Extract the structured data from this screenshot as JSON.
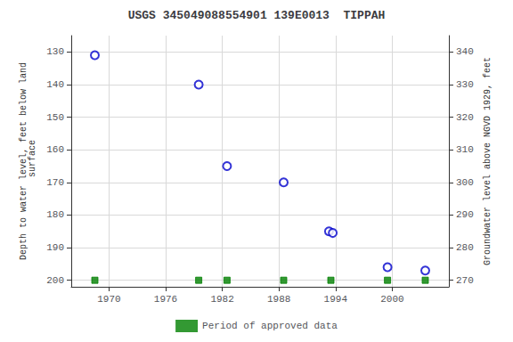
{
  "chart_data": {
    "type": "scatter",
    "title": "USGS 345049088554901 139E0013  TIPPAH",
    "y_label": "Depth to water level, feet below land\n surface",
    "y2_label": "Groundwater level above NGVD 1929, feet",
    "series": [
      {
        "x": [
          1968.5,
          1979.5,
          1982.5,
          1988.5,
          1993.3,
          1993.7,
          1999.5,
          2003.5
        ],
        "values": [
          131,
          140,
          165,
          170,
          185,
          185.5,
          196,
          197
        ],
        "color": "#0000cc",
        "marker": "open_circle"
      },
      {
        "name": "Period of approved data",
        "x": [
          1968.5,
          1979.5,
          1982.5,
          1988.5,
          1993.5,
          1999.5,
          2003.5
        ],
        "values": [
          200,
          200,
          200,
          200,
          200,
          200,
          200
        ],
        "color": "#008000",
        "marker": "square"
      }
    ],
    "xlim": [
      1966,
      2006
    ],
    "xticks": [
      1970,
      1976,
      1982,
      1988,
      1994,
      2000
    ],
    "ylim": [
      202,
      125
    ],
    "yticks": [
      130,
      140,
      150,
      160,
      170,
      180,
      190,
      200
    ],
    "y2lim": [
      268,
      345
    ],
    "y2ticks": [
      340,
      330,
      320,
      310,
      300,
      290,
      280,
      270
    ],
    "grid": true,
    "legend": "bottom"
  }
}
